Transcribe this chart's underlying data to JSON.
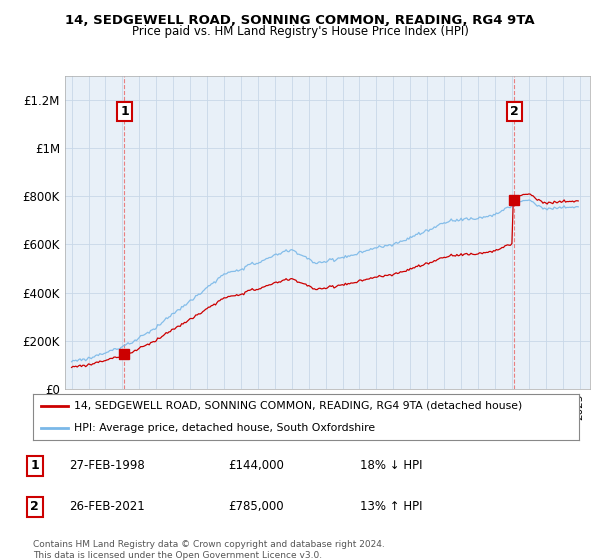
{
  "title1": "14, SEDGEWELL ROAD, SONNING COMMON, READING, RG4 9TA",
  "title2": "Price paid vs. HM Land Registry's House Price Index (HPI)",
  "ylim": [
    0,
    1300000
  ],
  "yticks": [
    0,
    200000,
    400000,
    600000,
    800000,
    1000000,
    1200000
  ],
  "ytick_labels": [
    "£0",
    "£200K",
    "£400K",
    "£600K",
    "£800K",
    "£1M",
    "£1.2M"
  ],
  "sale1_t": 1998.125,
  "sale1_price": 144000,
  "sale2_t": 2021.125,
  "sale2_price": 785000,
  "hpi_color": "#7ab8e8",
  "price_color": "#cc0000",
  "vline_color": "#e88080",
  "background_color": "#ffffff",
  "plot_bg_color": "#e8f0f8",
  "grid_color": "#c8d8e8",
  "legend_label_price": "14, SEDGEWELL ROAD, SONNING COMMON, READING, RG4 9TA (detached house)",
  "legend_label_hpi": "HPI: Average price, detached house, South Oxfordshire",
  "annotation1_date": "27-FEB-1998",
  "annotation1_price": "£144,000",
  "annotation1_pct": "18% ↓ HPI",
  "annotation2_date": "26-FEB-2021",
  "annotation2_price": "£785,000",
  "annotation2_pct": "13% ↑ HPI",
  "footer": "Contains HM Land Registry data © Crown copyright and database right 2024.\nThis data is licensed under the Open Government Licence v3.0."
}
